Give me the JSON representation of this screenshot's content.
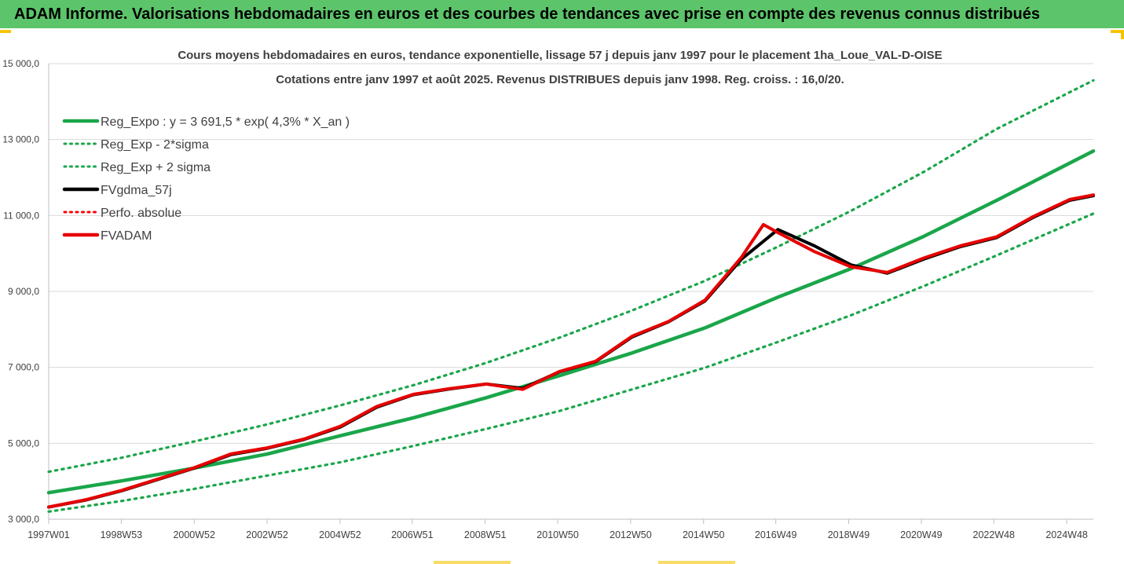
{
  "banner": {
    "title": "ADAM Informe. Valorisations hebdomadaires en euros et des courbes de tendances avec prise en compte des revenus connus distribués",
    "background": "#5cc46a",
    "accent": "#f5c400"
  },
  "chart_data": {
    "type": "line",
    "title": "Cours moyens hebdomadaires en euros, tendance exponentielle, lissage 57 j depuis janv 1997 pour le placement 1ha_Loue_VAL-D-OISE",
    "subtitle": "Cotations entre janv 1997 et août 2025. Revenus DISTRIBUES depuis janv 1998. Reg. croiss. : 16,0/20.",
    "xlabel": "",
    "ylabel": "",
    "xlim": [
      1997.0,
      2025.65
    ],
    "ylim": [
      3000,
      15000
    ],
    "yticks": [
      3000,
      5000,
      7000,
      9000,
      11000,
      13000,
      15000
    ],
    "ytick_labels": [
      "3 000,0",
      "5 000,0",
      "7 000,0",
      "9 000,0",
      "11 000,0",
      "13 000,0",
      "15 000,0"
    ],
    "xticks": [
      1997.0,
      1998.99,
      2000.99,
      2002.99,
      2004.99,
      2006.97,
      2008.97,
      2010.96,
      2012.96,
      2014.96,
      2016.94,
      2018.94,
      2020.93,
      2022.92,
      2024.92
    ],
    "xtick_labels": [
      "1997W01",
      "1998W53",
      "2000W52",
      "2002W52",
      "2004W52",
      "2006W51",
      "2008W51",
      "2010W50",
      "2012W50",
      "2014W50",
      "2016W49",
      "2018W49",
      "2020W49",
      "2022W48",
      "2024W48"
    ],
    "grid": true,
    "legend_position": "top-left",
    "legend": [
      {
        "label": "Reg_Expo : y = 3 691,5 * exp( 4,3% *  X_an )",
        "color": "#1aa64a",
        "style": "solid"
      },
      {
        "label": "Reg_Exp - 2*sigma",
        "color": "#1aa64a",
        "style": "dotted"
      },
      {
        "label": "Reg_Exp + 2 sigma",
        "color": "#1aa64a",
        "style": "dotted"
      },
      {
        "label": "FVgdma_57j",
        "color": "#000000",
        "style": "solid"
      },
      {
        "label": "Perfo. absolue",
        "color": "#ff0000",
        "style": "dotted"
      },
      {
        "label": "FVADAM",
        "color": "#e60000",
        "style": "solid"
      }
    ],
    "series": [
      {
        "name": "Reg_Expo : y = 3 691,5 * exp( 4,3% *  X_an )",
        "color": "#1aa64a",
        "style": "solid",
        "x": [
          1997.0,
          1999.0,
          2001.0,
          2003.0,
          2005.0,
          2007.0,
          2009.0,
          2011.0,
          2013.0,
          2015.0,
          2017.0,
          2019.0,
          2021.0,
          2023.0,
          2025.65
        ],
        "values": [
          3700,
          4010,
          4350,
          4720,
          5200,
          5670,
          6200,
          6780,
          7380,
          8040,
          8850,
          9600,
          10450,
          11400,
          12700
        ]
      },
      {
        "name": "Reg_Exp - 2*sigma",
        "color": "#1aa64a",
        "style": "dotted",
        "x": [
          1997.0,
          1999.0,
          2001.0,
          2003.0,
          2005.0,
          2007.0,
          2009.0,
          2011.0,
          2013.0,
          2015.0,
          2017.0,
          2019.0,
          2021.0,
          2023.0,
          2025.65
        ],
        "values": [
          3200,
          3480,
          3800,
          4150,
          4500,
          4930,
          5380,
          5850,
          6420,
          6990,
          7670,
          8370,
          9140,
          9950,
          11050
        ]
      },
      {
        "name": "Reg_Exp + 2 sigma",
        "color": "#1aa64a",
        "style": "dotted",
        "x": [
          1997.0,
          1999.0,
          2001.0,
          2003.0,
          2005.0,
          2007.0,
          2009.0,
          2011.0,
          2013.0,
          2015.0,
          2017.0,
          2019.0,
          2021.0,
          2023.0,
          2025.65
        ],
        "values": [
          4250,
          4620,
          5050,
          5500,
          6000,
          6530,
          7120,
          7780,
          8500,
          9280,
          10180,
          11120,
          12150,
          13280,
          14560
        ]
      },
      {
        "name": "FVgdma_57j",
        "color": "#000000",
        "style": "solid",
        "x": [
          1997.0,
          1998.0,
          1999.0,
          2000.0,
          2001.0,
          2002.0,
          2003.0,
          2004.0,
          2005.0,
          2006.0,
          2007.0,
          2008.0,
          2009.0,
          2010.0,
          2011.0,
          2012.0,
          2013.0,
          2014.0,
          2015.0,
          2016.0,
          2017.0,
          2018.0,
          2019.0,
          2020.0,
          2021.0,
          2022.0,
          2023.0,
          2024.0,
          2025.0,
          2025.65
        ],
        "values": [
          3320,
          3500,
          3750,
          4050,
          4350,
          4700,
          4870,
          5100,
          5430,
          5950,
          6280,
          6430,
          6560,
          6450,
          6880,
          7150,
          7800,
          8200,
          8750,
          9850,
          10630,
          10200,
          9700,
          9480,
          9850,
          10180,
          10420,
          10950,
          11400,
          11520
        ]
      },
      {
        "name": "FVADAM",
        "color": "#e60000",
        "style": "solid",
        "x": [
          1997.0,
          1998.0,
          1999.0,
          2000.0,
          2001.0,
          2002.0,
          2003.0,
          2004.0,
          2005.0,
          2006.0,
          2007.0,
          2008.0,
          2009.0,
          2010.0,
          2011.0,
          2012.0,
          2013.0,
          2014.0,
          2015.0,
          2016.0,
          2016.6,
          2017.0,
          2018.0,
          2019.0,
          2020.0,
          2021.0,
          2022.0,
          2023.0,
          2024.0,
          2025.0,
          2025.65
        ],
        "values": [
          3320,
          3510,
          3760,
          4060,
          4360,
          4720,
          4880,
          5110,
          5450,
          5970,
          6290,
          6440,
          6560,
          6420,
          6890,
          7160,
          7820,
          8210,
          8770,
          9900,
          10760,
          10550,
          10050,
          9650,
          9500,
          9880,
          10200,
          10440,
          10970,
          11420,
          11540
        ]
      }
    ]
  }
}
